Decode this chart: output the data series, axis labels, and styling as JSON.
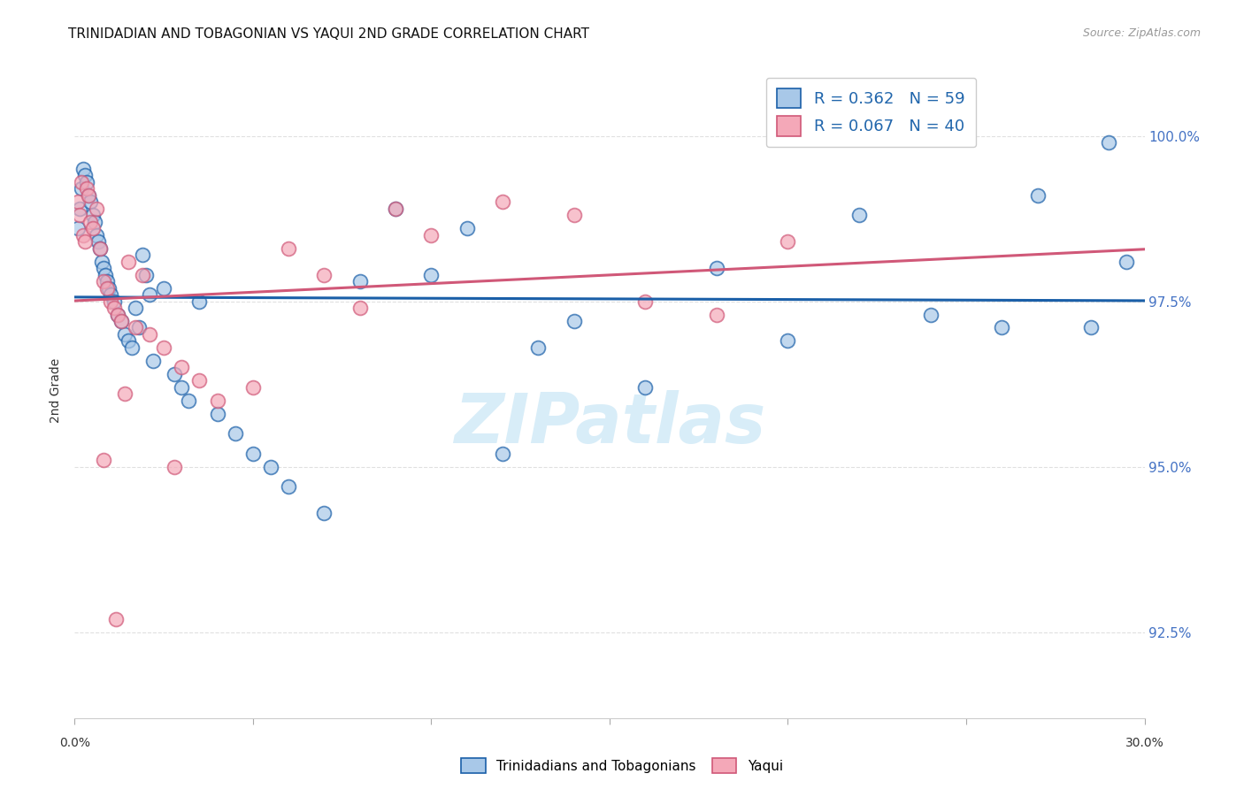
{
  "title": "TRINIDADIAN AND TOBAGONIAN VS YAQUI 2ND GRADE CORRELATION CHART",
  "source": "Source: ZipAtlas.com",
  "ylabel": "2nd Grade",
  "yticks": [
    92.5,
    95.0,
    97.5,
    100.0
  ],
  "ytick_labels": [
    "92.5%",
    "95.0%",
    "97.5%",
    "100.0%"
  ],
  "xmin": 0.0,
  "xmax": 30.0,
  "ymin": 91.2,
  "ymax": 101.1,
  "legend_blue_label": "R = 0.362   N = 59",
  "legend_pink_label": "R = 0.067   N = 40",
  "legend_bottom_blue": "Trinidadians and Tobagonians",
  "legend_bottom_pink": "Yaqui",
  "blue_color": "#a8c8e8",
  "pink_color": "#f4a8b8",
  "trend_blue": "#1a5fa8",
  "trend_pink": "#d05878",
  "blue_scatter_x": [
    0.1,
    0.15,
    0.2,
    0.25,
    0.3,
    0.35,
    0.4,
    0.45,
    0.5,
    0.55,
    0.6,
    0.65,
    0.7,
    0.75,
    0.8,
    0.85,
    0.9,
    0.95,
    1.0,
    1.1,
    1.2,
    1.3,
    1.4,
    1.5,
    1.6,
    1.7,
    1.8,
    1.9,
    2.0,
    2.1,
    2.2,
    2.5,
    2.8,
    3.0,
    3.2,
    3.5,
    4.0,
    4.5,
    5.0,
    5.5,
    6.0,
    7.0,
    8.0,
    9.0,
    10.0,
    11.0,
    12.0,
    14.0,
    16.0,
    18.0,
    20.0,
    22.0,
    24.0,
    26.0,
    27.0,
    28.5,
    29.0,
    29.5,
    13.0
  ],
  "blue_scatter_y": [
    98.6,
    98.9,
    99.2,
    99.5,
    99.4,
    99.3,
    99.1,
    99.0,
    98.8,
    98.7,
    98.5,
    98.4,
    98.3,
    98.1,
    98.0,
    97.9,
    97.8,
    97.7,
    97.6,
    97.5,
    97.3,
    97.2,
    97.0,
    96.9,
    96.8,
    97.4,
    97.1,
    98.2,
    97.9,
    97.6,
    96.6,
    97.7,
    96.4,
    96.2,
    96.0,
    97.5,
    95.8,
    95.5,
    95.2,
    95.0,
    94.7,
    94.3,
    97.8,
    98.9,
    97.9,
    98.6,
    95.2,
    97.2,
    96.2,
    98.0,
    96.9,
    98.8,
    97.3,
    97.1,
    99.1,
    97.1,
    99.9,
    98.1,
    96.8
  ],
  "pink_scatter_x": [
    0.1,
    0.15,
    0.2,
    0.25,
    0.3,
    0.35,
    0.4,
    0.45,
    0.5,
    0.6,
    0.7,
    0.8,
    0.9,
    1.0,
    1.1,
    1.2,
    1.3,
    1.5,
    1.7,
    1.9,
    2.1,
    2.5,
    3.0,
    3.5,
    4.0,
    5.0,
    6.0,
    7.0,
    8.0,
    9.0,
    10.0,
    12.0,
    14.0,
    16.0,
    18.0,
    20.0,
    2.8,
    1.4,
    0.8,
    1.15
  ],
  "pink_scatter_y": [
    99.0,
    98.8,
    99.3,
    98.5,
    98.4,
    99.2,
    99.1,
    98.7,
    98.6,
    98.9,
    98.3,
    97.8,
    97.7,
    97.5,
    97.4,
    97.3,
    97.2,
    98.1,
    97.1,
    97.9,
    97.0,
    96.8,
    96.5,
    96.3,
    96.0,
    96.2,
    98.3,
    97.9,
    97.4,
    98.9,
    98.5,
    99.0,
    98.8,
    97.5,
    97.3,
    98.4,
    95.0,
    96.1,
    95.1,
    92.7
  ],
  "watermark_color": "#d8edf8",
  "background_color": "#ffffff",
  "grid_color": "#e0e0e0"
}
